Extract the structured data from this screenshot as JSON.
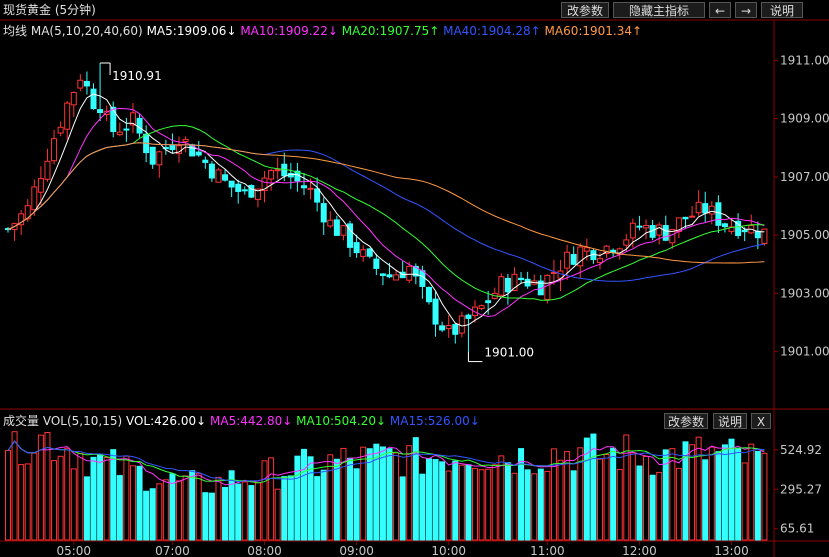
{
  "window": {
    "title": "现货黄金 (5分钟)",
    "buttons": [
      "改参数",
      "隐藏主指标",
      "←",
      "→",
      "说明"
    ]
  },
  "price_panel": {
    "indicator_label": "均线",
    "params_label": "MA(5,10,20,40,60)",
    "ma_readouts": [
      {
        "name": "MA5",
        "text": "MA5:1909.06↓",
        "color": "#ffffff"
      },
      {
        "name": "MA10",
        "text": "MA10:1909.22↓",
        "color": "#ff33ff"
      },
      {
        "name": "MA20",
        "text": "MA20:1907.75↑",
        "color": "#33ff33"
      },
      {
        "name": "MA40",
        "text": "MA40:1904.28↑",
        "color": "#3355ff"
      },
      {
        "name": "MA60",
        "text": "MA60:1901.34↑",
        "color": "#ff9944"
      }
    ],
    "high_marker": "1910.91",
    "low_marker": "1901.00"
  },
  "volume_panel": {
    "indicator_label": "成交量",
    "params_label": "VOL(5,10,15)",
    "readouts": [
      {
        "name": "VOL",
        "text": "VOL:426.00↓",
        "color": "#ffffff"
      },
      {
        "name": "MA5",
        "text": "MA5:442.80↓",
        "color": "#ff33ff"
      },
      {
        "name": "MA10",
        "text": "MA10:504.20↓",
        "color": "#33ff33"
      },
      {
        "name": "MA15",
        "text": "MA15:526.00↓",
        "color": "#3355ff"
      }
    ],
    "buttons": [
      "改参数",
      "说明",
      "X"
    ]
  },
  "colors": {
    "up": "#ff3333",
    "down": "#33ffff",
    "grid": "#8b0000",
    "text": "#c8c8c8"
  },
  "chart_data": [
    {
      "type": "candlestick",
      "title": "现货黄金 (5分钟)",
      "y_ticks": [
        "1911.00",
        "1909.00",
        "1907.00",
        "1905.00",
        "1903.00",
        "1901.00"
      ],
      "ylim": [
        1899.2,
        1911.7
      ],
      "x_ticks": [
        {
          "label": "05:00",
          "index": 10
        },
        {
          "label": "07:00",
          "index": 25
        },
        {
          "label": "08:00",
          "index": 39
        },
        {
          "label": "09:00",
          "index": 53
        },
        {
          "label": "10:00",
          "index": 67
        },
        {
          "label": "11:00",
          "index": 82
        },
        {
          "label": "12:00",
          "index": 96
        },
        {
          "label": "13:00",
          "index": 110
        }
      ],
      "anchors": [
        [
          0,
          1905.2
        ],
        [
          3,
          1905.9
        ],
        [
          6,
          1907.8
        ],
        [
          9,
          1909.5
        ],
        [
          11,
          1910.5
        ],
        [
          13,
          1909.6
        ],
        [
          16,
          1908.6
        ],
        [
          19,
          1908.9
        ],
        [
          22,
          1907.6
        ],
        [
          26,
          1908.4
        ],
        [
          30,
          1907.5
        ],
        [
          33,
          1906.8
        ],
        [
          36,
          1906.4
        ],
        [
          40,
          1907.2
        ],
        [
          43,
          1907.0
        ],
        [
          46,
          1906.5
        ],
        [
          49,
          1905.4
        ],
        [
          52,
          1904.8
        ],
        [
          55,
          1904.0
        ],
        [
          58,
          1903.6
        ],
        [
          61,
          1903.9
        ],
        [
          64,
          1902.5
        ],
        [
          67,
          1901.6
        ],
        [
          69,
          1901.9
        ],
        [
          72,
          1902.5
        ],
        [
          75,
          1903.3
        ],
        [
          78,
          1903.5
        ],
        [
          81,
          1903.3
        ],
        [
          84,
          1904.0
        ],
        [
          87,
          1904.5
        ],
        [
          90,
          1904.5
        ],
        [
          93,
          1904.8
        ],
        [
          96,
          1905.3
        ],
        [
          100,
          1905.1
        ],
        [
          103,
          1905.6
        ],
        [
          106,
          1905.9
        ],
        [
          109,
          1905.4
        ],
        [
          112,
          1905.3
        ],
        [
          115,
          1905.1
        ]
      ],
      "candle_count": 116,
      "high": {
        "value": 1910.91,
        "index": 14
      },
      "low": {
        "value": 1901.0,
        "index": 70
      },
      "ma_end_values": {
        "MA5": 1909.06,
        "MA10": 1909.22,
        "MA20": 1907.75,
        "MA40": 1904.28,
        "MA60": 1901.34
      }
    },
    {
      "type": "bar",
      "title": "成交量",
      "y_ticks": [
        "524.92",
        "295.27",
        "65.61"
      ],
      "ylim": [
        0,
        640
      ],
      "anchors": [
        [
          0,
          600
        ],
        [
          6,
          610
        ],
        [
          10,
          540
        ],
        [
          14,
          460
        ],
        [
          18,
          420
        ],
        [
          22,
          380
        ],
        [
          26,
          340
        ],
        [
          30,
          330
        ],
        [
          34,
          360
        ],
        [
          38,
          380
        ],
        [
          42,
          420
        ],
        [
          46,
          440
        ],
        [
          50,
          470
        ],
        [
          54,
          480
        ],
        [
          58,
          500
        ],
        [
          62,
          490
        ],
        [
          66,
          500
        ],
        [
          70,
          520
        ],
        [
          74,
          510
        ],
        [
          78,
          500
        ],
        [
          82,
          520
        ],
        [
          86,
          530
        ],
        [
          90,
          510
        ],
        [
          94,
          520
        ],
        [
          98,
          500
        ],
        [
          102,
          510
        ],
        [
          106,
          520
        ],
        [
          110,
          500
        ],
        [
          115,
          470
        ]
      ],
      "series": [
        {
          "name": "VOL",
          "end_value": 426.0
        },
        {
          "name": "MA5",
          "end_value": 442.8
        },
        {
          "name": "MA10",
          "end_value": 504.2
        },
        {
          "name": "MA15",
          "end_value": 526.0
        }
      ]
    }
  ]
}
